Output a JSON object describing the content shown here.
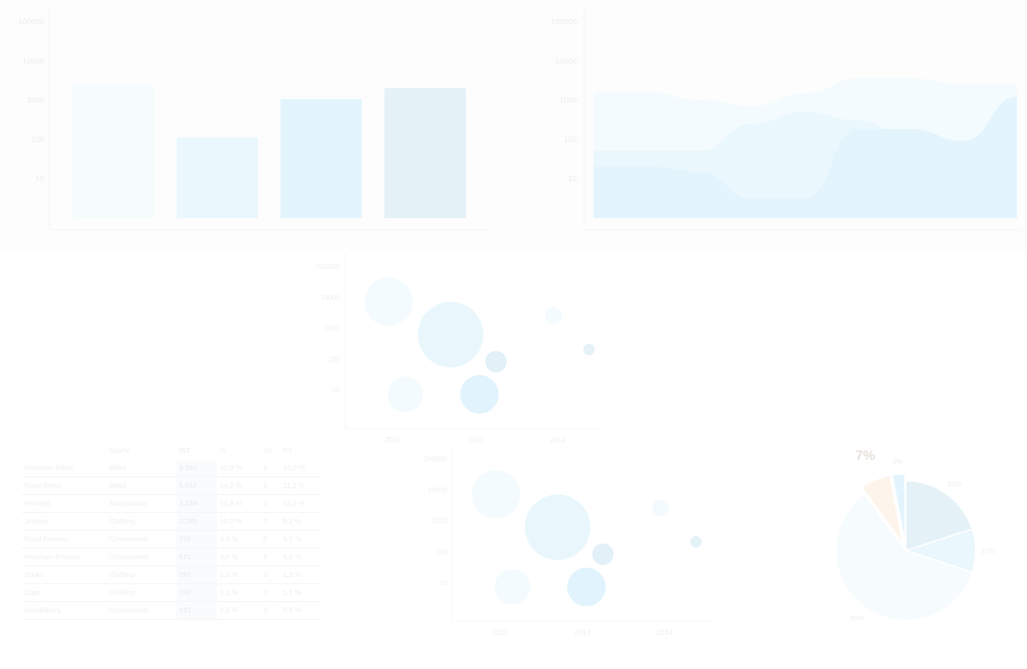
{
  "chart_data": [
    {
      "type": "bar",
      "y_scale": "log",
      "ylim": [
        1,
        100000
      ],
      "y_ticks": [
        "100000",
        "10000",
        "1000",
        "100",
        "10"
      ],
      "categories": [
        "",
        "",
        "",
        ""
      ],
      "values": [
        2500,
        110,
        1050,
        2000
      ],
      "colors": [
        "#f6fbfe",
        "#eaf7fd",
        "#e4f4fc",
        "#e4f1f7"
      ],
      "grid": false
    },
    {
      "type": "area",
      "y_scale": "log",
      "ylim": [
        1,
        100000
      ],
      "y_ticks": [
        "100000",
        "10000",
        "1000",
        "100",
        "10"
      ],
      "x": [
        0,
        1,
        2,
        3,
        4,
        5,
        6,
        7,
        8
      ],
      "series": [
        {
          "values": [
            1600,
            1600,
            1000,
            700,
            1500,
            3500,
            3500,
            2500,
            2500
          ],
          "color": "#f4fbfe"
        },
        {
          "values": [
            50,
            50,
            50,
            250,
            500,
            300,
            90,
            90,
            1200
          ],
          "color": "#eaf7fd"
        },
        {
          "values": [
            20,
            20,
            15,
            3,
            3,
            180,
            180,
            90,
            1200
          ],
          "color": "#e3f4fc"
        }
      ],
      "grid": false
    },
    {
      "type": "scatter",
      "subtype": "bubble",
      "y_scale": "log",
      "ylim": [
        1,
        100000
      ],
      "y_ticks": [
        "100000",
        "10000",
        "1000",
        "100",
        "10"
      ],
      "x_ticks": [
        "2012",
        "2013",
        "2014"
      ],
      "points": [
        {
          "x": 2011.95,
          "y": 7000,
          "size": 34,
          "color": "#f4fbfe"
        },
        {
          "x": 2012.7,
          "y": 600,
          "size": 46,
          "color": "#e9f7fd"
        },
        {
          "x": 2013.25,
          "y": 80,
          "size": 15,
          "color": "#e2f0f7"
        },
        {
          "x": 2012.15,
          "y": 7,
          "size": 25,
          "color": "#f4fbfe"
        },
        {
          "x": 2013.05,
          "y": 7,
          "size": 27,
          "color": "#e1f3fc"
        },
        {
          "x": 2014.38,
          "y": 200,
          "size": 8,
          "color": "#e4f1f7"
        },
        {
          "x": 2013.95,
          "y": 2500,
          "size": 12,
          "color": "#f4fbfe"
        }
      ]
    },
    {
      "type": "scatter",
      "subtype": "bubble",
      "y_scale": "log",
      "ylim": [
        1,
        100000
      ],
      "y_ticks": [
        "100000",
        "10000",
        "1000",
        "100",
        "10"
      ],
      "x_ticks": [
        "2012",
        "2013",
        "2014"
      ],
      "points": [
        {
          "x": 2011.95,
          "y": 7000,
          "size": 34,
          "color": "#f4fbfe"
        },
        {
          "x": 2012.7,
          "y": 600,
          "size": 46,
          "color": "#e9f7fd"
        },
        {
          "x": 2013.25,
          "y": 80,
          "size": 15,
          "color": "#e2f0f7"
        },
        {
          "x": 2012.15,
          "y": 7,
          "size": 25,
          "color": "#f4fbfe"
        },
        {
          "x": 2013.05,
          "y": 7,
          "size": 27,
          "color": "#e1f3fc"
        },
        {
          "x": 2014.38,
          "y": 200,
          "size": 8,
          "color": "#e4f1f7"
        },
        {
          "x": 2013.95,
          "y": 2500,
          "size": 12,
          "color": "#f4fbfe"
        }
      ]
    },
    {
      "type": "table",
      "columns": [
        "",
        "Sparte",
        "IST",
        "%",
        "VJ",
        "PY"
      ],
      "rows": [
        [
          "Mountain Bikes",
          "Bikes",
          "9.393",
          "42,0 %",
          "0",
          "24,0 %"
        ],
        [
          "Road Bikes",
          "Bikes",
          "5.417",
          "24,2 %",
          "0",
          "11,2 %"
        ],
        [
          "Helmets",
          "Accessories",
          "3.334",
          "14,9 %",
          "0",
          "13,9 %"
        ],
        [
          "Jerseys",
          "Clothing",
          "2.280",
          "10,2 %",
          "0",
          "8,2 %"
        ],
        [
          "Road Frames",
          "Components",
          "730",
          "3,3 %",
          "0",
          "3,0 %"
        ],
        [
          "Mountain Frames",
          "Components",
          "671",
          "3,0 %",
          "0",
          "4,0 %"
        ],
        [
          "Socks",
          "Clothing",
          "293",
          "1,3 %",
          "0",
          "1,3 %"
        ],
        [
          "Caps",
          "Clothing",
          "248",
          "1,1 %",
          "0",
          "1,1 %"
        ],
        [
          "Handlebars",
          "Components",
          "143",
          "0,6 %",
          "0",
          "0,6 %"
        ]
      ]
    },
    {
      "type": "pie",
      "slices": [
        {
          "label": "20%",
          "value": 20,
          "color": "#e4f1f7",
          "label_size": "small"
        },
        {
          "label": "10%",
          "value": 10,
          "color": "#eaf7fd",
          "label_size": "small"
        },
        {
          "label": "60%",
          "value": 60,
          "color": "#f6fbfe",
          "label_size": "small"
        },
        {
          "label": "7%",
          "value": 7,
          "color": "#fdf4eb",
          "label_size": "large",
          "exploded": true
        },
        {
          "label": "3%",
          "value": 3,
          "color": "#e4f4fc",
          "label_size": "small",
          "exploded": true
        }
      ]
    }
  ]
}
